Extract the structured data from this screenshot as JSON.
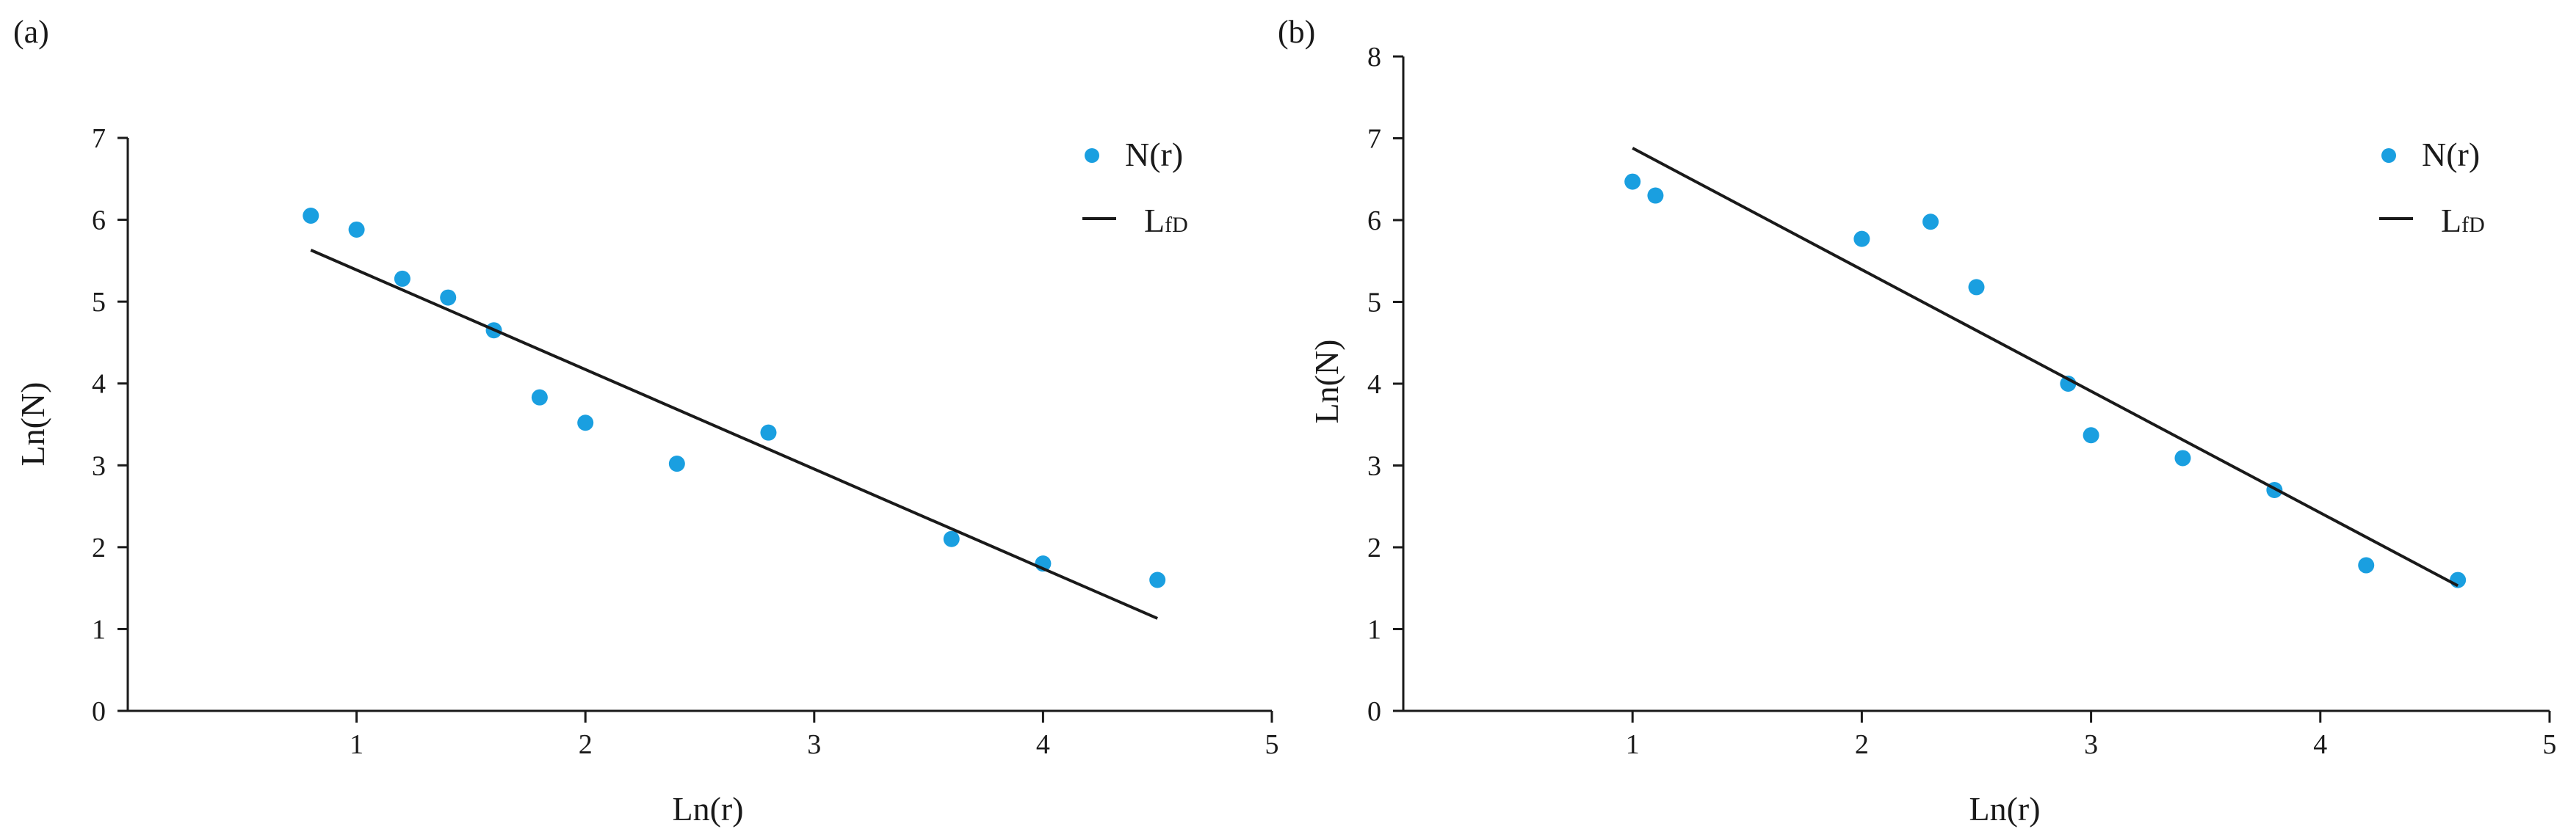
{
  "chart_data": [
    {
      "type": "scatter",
      "panel_label": "(a)",
      "xlabel": "Ln(r)",
      "ylabel": "Ln(N)",
      "xlim": [
        0,
        5
      ],
      "ylim": [
        0,
        7
      ],
      "xticks": [
        "1",
        "2",
        "3",
        "4",
        "5"
      ],
      "yticks": [
        "0",
        "1",
        "2",
        "3",
        "4",
        "5",
        "6",
        "7"
      ],
      "legend_position": "top-right",
      "series": [
        {
          "name": "N(r)",
          "kind": "points",
          "color": "#1a9fe0",
          "x": [
            0.8,
            1.0,
            1.2,
            1.4,
            1.6,
            1.8,
            2.0,
            2.4,
            2.8,
            3.6,
            4.0,
            4.5
          ],
          "y": [
            6.05,
            5.88,
            5.28,
            5.05,
            4.65,
            3.83,
            3.52,
            3.02,
            3.4,
            2.1,
            1.8,
            1.6
          ]
        },
        {
          "name": "L",
          "name_sub": "fD",
          "kind": "line",
          "color": "#1a1a1a",
          "x": [
            0.8,
            4.5
          ],
          "y": [
            5.63,
            1.13
          ]
        }
      ]
    },
    {
      "type": "scatter",
      "panel_label": "(b)",
      "xlabel": "Ln(r)",
      "ylabel": "Ln(N)",
      "xlim": [
        0,
        5
      ],
      "ylim": [
        0,
        8
      ],
      "xticks": [
        "1",
        "2",
        "3",
        "4",
        "5"
      ],
      "yticks": [
        "0",
        "1",
        "2",
        "3",
        "4",
        "5",
        "6",
        "7",
        "8"
      ],
      "legend_position": "top-right",
      "series": [
        {
          "name": "N(r)",
          "kind": "points",
          "color": "#1a9fe0",
          "x": [
            1.0,
            1.1,
            2.0,
            2.3,
            2.5,
            2.9,
            3.0,
            3.4,
            3.8,
            4.2,
            4.6
          ],
          "y": [
            6.47,
            6.3,
            5.77,
            5.98,
            5.18,
            4.0,
            3.37,
            3.09,
            2.7,
            1.78,
            1.6
          ]
        },
        {
          "name": "L",
          "name_sub": "fD",
          "kind": "line",
          "color": "#1a1a1a",
          "x": [
            1.0,
            4.6
          ],
          "y": [
            6.88,
            1.53
          ]
        }
      ]
    }
  ]
}
